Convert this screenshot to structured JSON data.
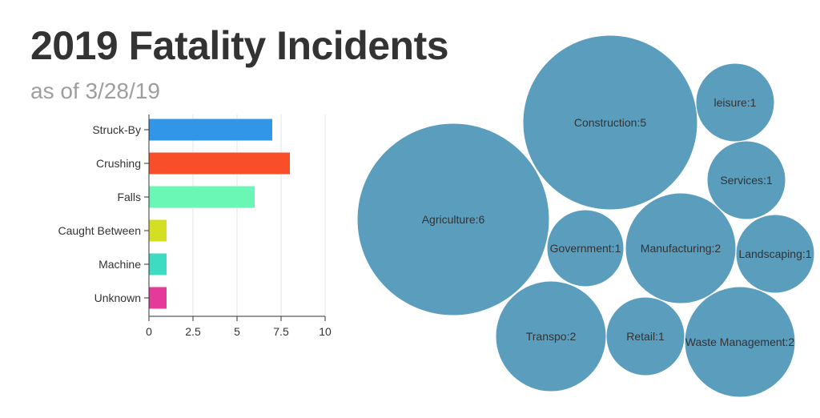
{
  "header": {
    "title": "2019 Fatality Incidents",
    "subtitle": "as of 3/28/19"
  },
  "chart_data": [
    {
      "type": "bar",
      "orientation": "horizontal",
      "categories": [
        "Struck-By",
        "Crushing",
        "Falls",
        "Caught Between",
        "Machine",
        "Unknown"
      ],
      "values": [
        7,
        8,
        6,
        1,
        1,
        1
      ],
      "colors": [
        "#3196e8",
        "#f84e2a",
        "#6af7b6",
        "#d5df22",
        "#3cdbc2",
        "#e63a9b"
      ],
      "xlim": [
        0,
        10
      ],
      "xticks": [
        "0",
        "2.5",
        "5",
        "7.5",
        "10"
      ],
      "xtick_values": [
        0,
        2.5,
        5,
        7.5,
        10
      ],
      "grid": true
    },
    {
      "type": "bubble",
      "color": "#5b9dbd",
      "items": [
        {
          "label": "Agriculture:6",
          "value": 6
        },
        {
          "label": "Construction:5",
          "value": 5
        },
        {
          "label": "leisure:1",
          "value": 1
        },
        {
          "label": "Services:1",
          "value": 1
        },
        {
          "label": "Government:1",
          "value": 1
        },
        {
          "label": "Manufacturing:2",
          "value": 2
        },
        {
          "label": "Landscaping:1",
          "value": 1
        },
        {
          "label": "Transpo:2",
          "value": 2
        },
        {
          "label": "Retail:1",
          "value": 1
        },
        {
          "label": "Waste Management:2",
          "value": 2
        }
      ]
    }
  ]
}
